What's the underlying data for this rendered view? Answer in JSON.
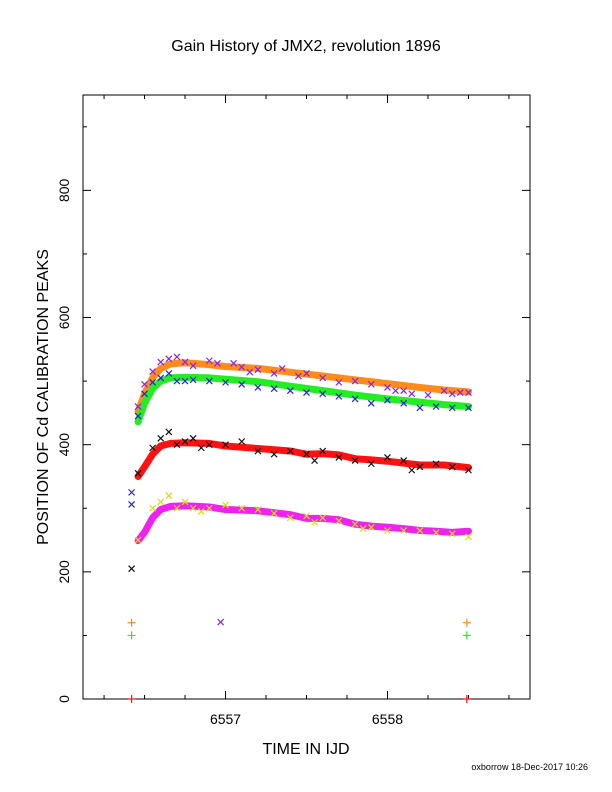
{
  "chart_data": {
    "type": "scatter",
    "title": "Gain History of JMX2, revolution 1896",
    "xlabel": "TIME IN IJD",
    "ylabel": "POSITION OF Cd CALIBRATION PEAKS",
    "footer": "oxborrow 18-Dec-2017 10:26",
    "xlim": [
      6556.12,
      6558.88
    ],
    "ylim": [
      0,
      950
    ],
    "x_ticks": [
      6557,
      6558
    ],
    "y_ticks": [
      0,
      200,
      400,
      600,
      800
    ],
    "x_tick_labels": [
      "6557",
      "6558"
    ],
    "y_tick_labels": [
      "0",
      "200",
      "400",
      "600",
      "800"
    ],
    "grid": false,
    "series": [
      {
        "color": "#ff8c1a",
        "kind": "fit",
        "points": [
          [
            6556.46,
            452
          ],
          [
            6556.5,
            480
          ],
          [
            6556.55,
            505
          ],
          [
            6556.6,
            520
          ],
          [
            6556.66,
            527
          ],
          [
            6556.75,
            529
          ],
          [
            6556.9,
            526
          ],
          [
            6557.0,
            523
          ],
          [
            6557.2,
            520
          ],
          [
            6557.4,
            514
          ],
          [
            6557.6,
            508
          ],
          [
            6557.8,
            502
          ],
          [
            6558.0,
            496
          ],
          [
            6558.2,
            490
          ],
          [
            6558.35,
            486
          ],
          [
            6558.5,
            483
          ]
        ]
      },
      {
        "color": "#22ee22",
        "kind": "fit",
        "points": [
          [
            6556.46,
            436
          ],
          [
            6556.5,
            465
          ],
          [
            6556.55,
            488
          ],
          [
            6556.6,
            500
          ],
          [
            6556.66,
            505
          ],
          [
            6556.75,
            506
          ],
          [
            6556.9,
            505
          ],
          [
            6557.0,
            503
          ],
          [
            6557.2,
            499
          ],
          [
            6557.4,
            492
          ],
          [
            6557.6,
            485
          ],
          [
            6557.8,
            478
          ],
          [
            6558.0,
            472
          ],
          [
            6558.2,
            467
          ],
          [
            6558.35,
            463
          ],
          [
            6558.5,
            460
          ]
        ]
      },
      {
        "color": "#ff1111",
        "kind": "fit",
        "points": [
          [
            6556.46,
            350
          ],
          [
            6556.5,
            365
          ],
          [
            6556.55,
            385
          ],
          [
            6556.6,
            398
          ],
          [
            6556.66,
            402
          ],
          [
            6556.75,
            403
          ],
          [
            6556.9,
            402
          ],
          [
            6557.0,
            398
          ],
          [
            6557.2,
            394
          ],
          [
            6557.4,
            390
          ],
          [
            6557.5,
            385
          ],
          [
            6557.6,
            386
          ],
          [
            6557.7,
            384
          ],
          [
            6557.8,
            378
          ],
          [
            6557.9,
            376
          ],
          [
            6558.0,
            374
          ],
          [
            6558.2,
            368
          ],
          [
            6558.35,
            368
          ],
          [
            6558.5,
            364
          ]
        ]
      },
      {
        "color": "#ee22ee",
        "kind": "fit",
        "points": [
          [
            6556.46,
            249
          ],
          [
            6556.5,
            262
          ],
          [
            6556.55,
            285
          ],
          [
            6556.6,
            298
          ],
          [
            6556.66,
            303
          ],
          [
            6556.75,
            304
          ],
          [
            6556.9,
            302
          ],
          [
            6557.0,
            298
          ],
          [
            6557.2,
            296
          ],
          [
            6557.4,
            290
          ],
          [
            6557.5,
            284
          ],
          [
            6557.6,
            284
          ],
          [
            6557.7,
            282
          ],
          [
            6557.8,
            275
          ],
          [
            6557.9,
            272
          ],
          [
            6558.0,
            270
          ],
          [
            6558.1,
            268
          ],
          [
            6558.2,
            265
          ],
          [
            6558.3,
            264
          ],
          [
            6558.4,
            262
          ],
          [
            6558.5,
            264
          ]
        ]
      },
      {
        "color": "#8822ee",
        "kind": "noisy",
        "symbol": "x",
        "points": [
          [
            6556.46,
            460
          ],
          [
            6556.5,
            495
          ],
          [
            6556.55,
            515
          ],
          [
            6556.6,
            530
          ],
          [
            6556.65,
            535
          ],
          [
            6556.7,
            538
          ],
          [
            6556.75,
            530
          ],
          [
            6556.8,
            524
          ],
          [
            6556.9,
            532
          ],
          [
            6556.95,
            528
          ],
          [
            6557.05,
            528
          ],
          [
            6557.1,
            522
          ],
          [
            6557.15,
            514
          ],
          [
            6557.2,
            518
          ],
          [
            6557.3,
            512
          ],
          [
            6557.35,
            520
          ],
          [
            6557.45,
            508
          ],
          [
            6557.5,
            512
          ],
          [
            6557.6,
            505
          ],
          [
            6557.7,
            498
          ],
          [
            6557.8,
            500
          ],
          [
            6557.9,
            495
          ],
          [
            6558.0,
            490
          ],
          [
            6558.05,
            485
          ],
          [
            6558.1,
            485
          ],
          [
            6558.15,
            480
          ],
          [
            6558.25,
            478
          ],
          [
            6558.35,
            485
          ],
          [
            6558.4,
            480
          ],
          [
            6558.45,
            482
          ],
          [
            6558.5,
            482
          ]
        ]
      },
      {
        "color": "#2222dd",
        "kind": "noisy",
        "symbol": "x",
        "points": [
          [
            6556.46,
            445
          ],
          [
            6556.5,
            480
          ],
          [
            6556.55,
            498
          ],
          [
            6556.6,
            505
          ],
          [
            6556.65,
            512
          ],
          [
            6556.7,
            500
          ],
          [
            6556.75,
            500
          ],
          [
            6556.8,
            502
          ],
          [
            6556.9,
            500
          ],
          [
            6557.0,
            498
          ],
          [
            6557.1,
            495
          ],
          [
            6557.2,
            490
          ],
          [
            6557.3,
            488
          ],
          [
            6557.4,
            485
          ],
          [
            6557.5,
            482
          ],
          [
            6557.6,
            480
          ],
          [
            6557.7,
            476
          ],
          [
            6557.8,
            472
          ],
          [
            6557.9,
            465
          ],
          [
            6558.0,
            470
          ],
          [
            6558.1,
            465
          ],
          [
            6558.2,
            458
          ],
          [
            6558.3,
            460
          ],
          [
            6558.4,
            458
          ],
          [
            6558.5,
            458
          ]
        ]
      },
      {
        "color": "#111111",
        "kind": "noisy",
        "symbol": "x",
        "points": [
          [
            6556.46,
            355
          ],
          [
            6556.55,
            395
          ],
          [
            6556.6,
            410
          ],
          [
            6556.65,
            420
          ],
          [
            6556.7,
            400
          ],
          [
            6556.75,
            405
          ],
          [
            6556.8,
            410
          ],
          [
            6556.85,
            395
          ],
          [
            6556.9,
            400
          ],
          [
            6557.0,
            400
          ],
          [
            6557.1,
            405
          ],
          [
            6557.2,
            390
          ],
          [
            6557.3,
            385
          ],
          [
            6557.4,
            390
          ],
          [
            6557.5,
            385
          ],
          [
            6557.55,
            375
          ],
          [
            6557.6,
            390
          ],
          [
            6557.7,
            380
          ],
          [
            6557.8,
            375
          ],
          [
            6557.9,
            370
          ],
          [
            6558.0,
            380
          ],
          [
            6558.1,
            375
          ],
          [
            6558.15,
            360
          ],
          [
            6558.2,
            365
          ],
          [
            6558.3,
            370
          ],
          [
            6558.4,
            365
          ],
          [
            6558.5,
            360
          ]
        ]
      },
      {
        "color": "#dddd00",
        "kind": "noisy",
        "symbol": "x",
        "points": [
          [
            6556.46,
            250
          ],
          [
            6556.55,
            300
          ],
          [
            6556.6,
            310
          ],
          [
            6556.65,
            320
          ],
          [
            6556.7,
            300
          ],
          [
            6556.75,
            310
          ],
          [
            6556.8,
            300
          ],
          [
            6556.85,
            295
          ],
          [
            6556.9,
            300
          ],
          [
            6557.0,
            305
          ],
          [
            6557.1,
            300
          ],
          [
            6557.2,
            298
          ],
          [
            6557.3,
            292
          ],
          [
            6557.4,
            285
          ],
          [
            6557.5,
            288
          ],
          [
            6557.55,
            278
          ],
          [
            6557.6,
            285
          ],
          [
            6557.7,
            280
          ],
          [
            6557.8,
            275
          ],
          [
            6557.85,
            268
          ],
          [
            6557.9,
            270
          ],
          [
            6558.0,
            265
          ],
          [
            6558.1,
            265
          ],
          [
            6558.2,
            265
          ],
          [
            6558.3,
            262
          ],
          [
            6558.4,
            260
          ],
          [
            6558.5,
            255
          ]
        ]
      },
      {
        "color": "#2222dd",
        "kind": "outlier",
        "symbol": "x",
        "points": [
          [
            6556.42,
            325
          ],
          [
            6556.42,
            306
          ]
        ]
      },
      {
        "color": "#111111",
        "kind": "outlier",
        "symbol": "x",
        "points": [
          [
            6556.42,
            205
          ]
        ]
      },
      {
        "color": "#8822ee",
        "kind": "outlier",
        "symbol": "x",
        "points": [
          [
            6556.97,
            121
          ]
        ]
      },
      {
        "color": "#ff8c1a",
        "kind": "outlier",
        "symbol": "+",
        "points": [
          [
            6556.42,
            120
          ],
          [
            6558.49,
            120
          ]
        ]
      },
      {
        "color": "#22ee22",
        "kind": "outlier",
        "symbol": "+",
        "points": [
          [
            6556.42,
            100
          ],
          [
            6558.49,
            100
          ]
        ]
      },
      {
        "color": "#ff1111",
        "kind": "outlier",
        "symbol": "+",
        "points": [
          [
            6556.42,
            0
          ],
          [
            6558.49,
            0
          ]
        ]
      }
    ]
  }
}
